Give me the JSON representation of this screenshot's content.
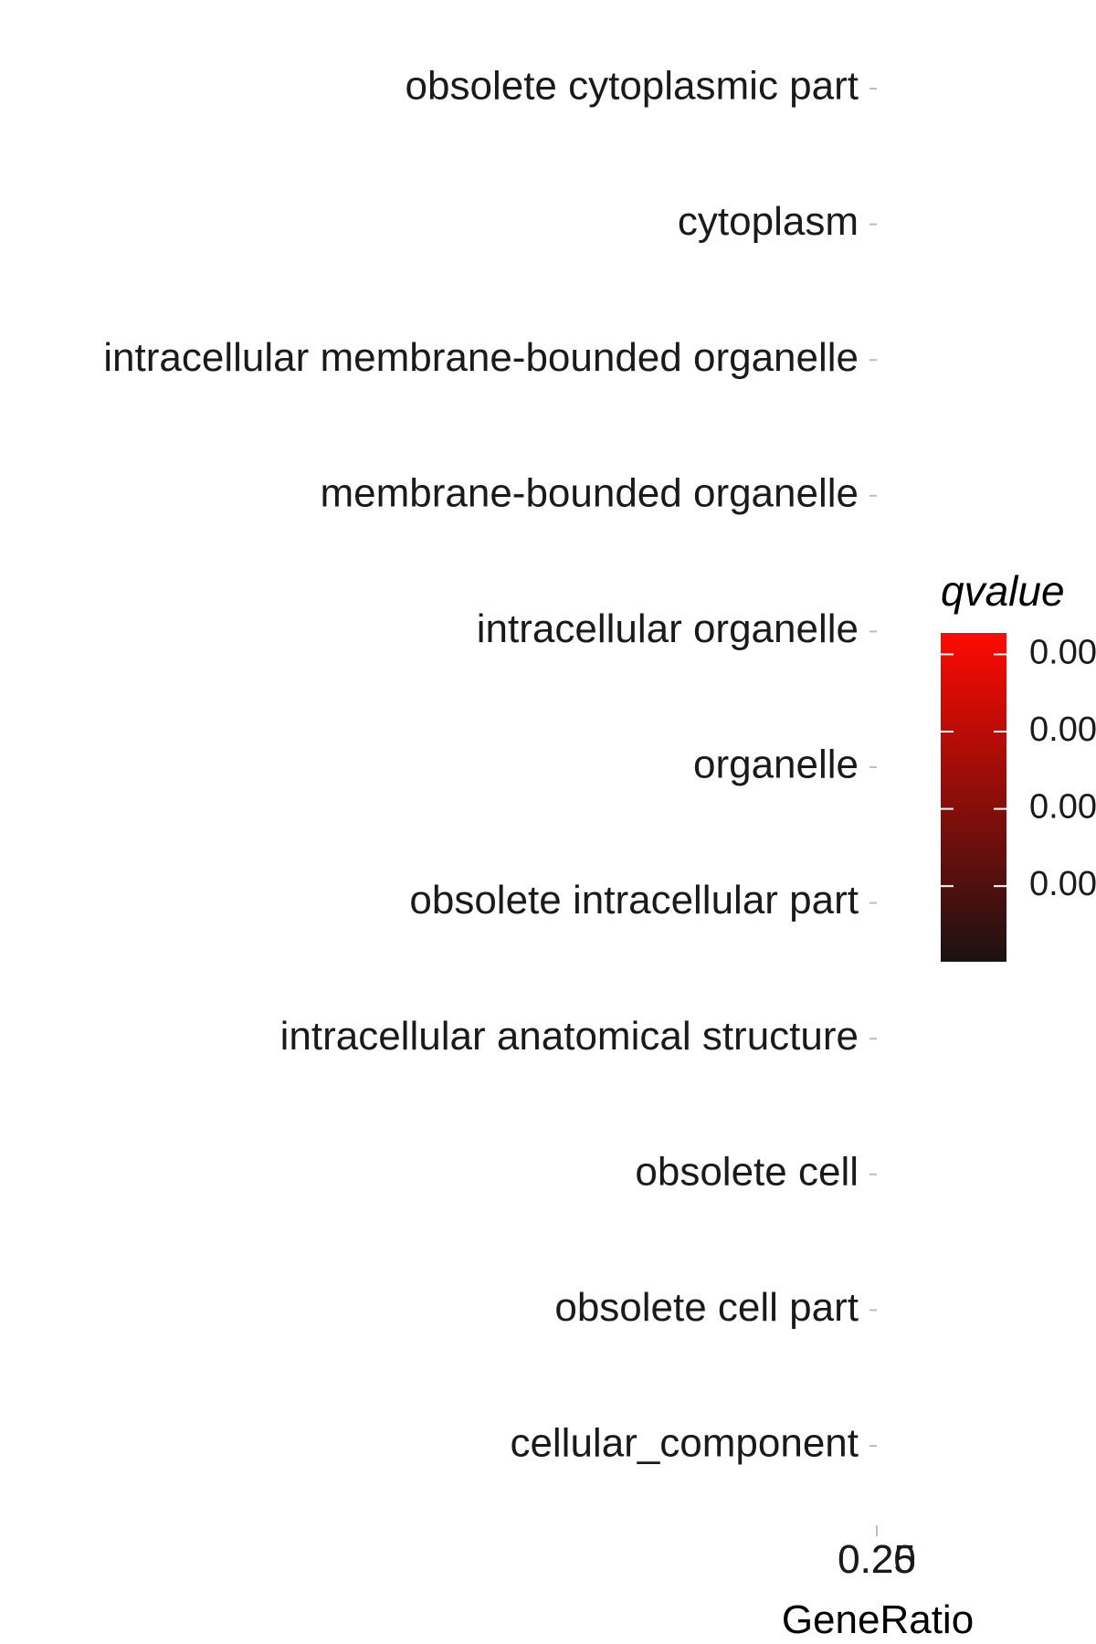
{
  "chart_data": {
    "type": "scatter",
    "categories": [
      "obsolete cytoplasmic part",
      "cytoplasm",
      "intracellular membrane-bounded organelle",
      "membrane-bounded organelle",
      "intracellular organelle",
      "organelle",
      "obsolete intracellular part",
      "intracellular anatomical structure",
      "obsolete cell",
      "obsolete cell part",
      "cellular_component"
    ],
    "xlabel": "GeneRatio",
    "x_tick_labels": [
      "0.20",
      "0.25"
    ],
    "legend": {
      "title": "qvalue",
      "tick_labels": [
        "0.00",
        "0.00",
        "0.00",
        "0.00"
      ],
      "colors": {
        "low": "#1a1212",
        "high": "#ff0a00"
      }
    }
  }
}
